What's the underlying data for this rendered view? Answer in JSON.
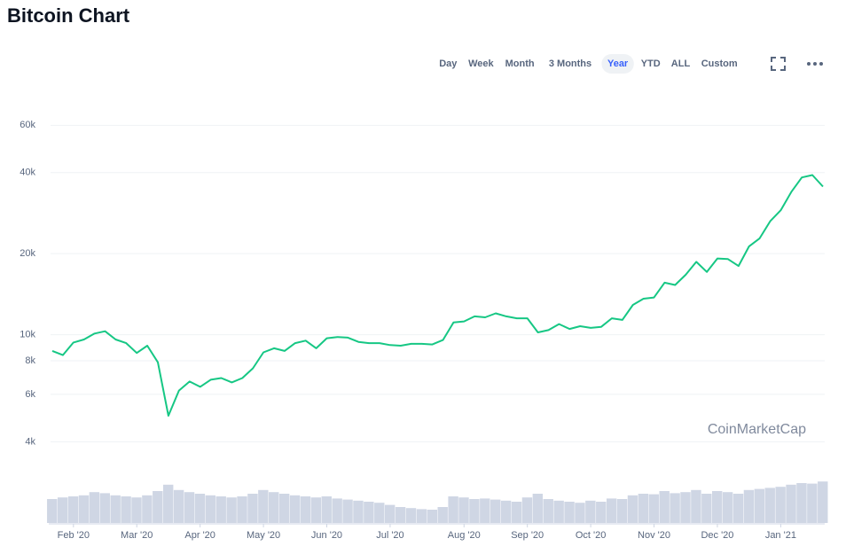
{
  "chart_data": {
    "type": "line",
    "title": "Bitcoin Chart",
    "toolbar": {
      "buttons": [
        "Day",
        "Week",
        "Month",
        "3 Months",
        "Year",
        "YTD",
        "ALL",
        "Custom"
      ],
      "active": 4
    },
    "watermark": "CoinMarketCap",
    "log_scale": true,
    "grid": true,
    "categories": [
      null,
      null,
      "Feb '20",
      null,
      null,
      null,
      null,
      null,
      "Mar '20",
      null,
      null,
      null,
      null,
      null,
      "Apr '20",
      null,
      null,
      null,
      null,
      null,
      "May '20",
      null,
      null,
      null,
      null,
      null,
      "Jun '20",
      null,
      null,
      null,
      null,
      null,
      "Jul '20",
      null,
      null,
      null,
      null,
      null,
      null,
      "Aug '20",
      null,
      null,
      null,
      null,
      null,
      "Sep '20",
      null,
      null,
      null,
      null,
      null,
      "Oct '20",
      null,
      null,
      null,
      null,
      null,
      "Nov '20",
      null,
      null,
      null,
      null,
      null,
      "Dec '20",
      null,
      null,
      null,
      null,
      null,
      "Jan '21",
      null,
      null,
      null,
      null
    ],
    "series": [
      {
        "color": "#16c784",
        "values": [
          8700,
          8400,
          9350,
          9600,
          10100,
          10300,
          9600,
          9300,
          8550,
          9100,
          7900,
          5000,
          6200,
          6700,
          6400,
          6800,
          6900,
          6650,
          6900,
          7500,
          8600,
          8900,
          8700,
          9300,
          9500,
          8900,
          9700,
          9800,
          9750,
          9400,
          9300,
          9300,
          9150,
          9100,
          9250,
          9250,
          9200,
          9550,
          11100,
          11200,
          11700,
          11600,
          12000,
          11700,
          11500,
          11500,
          10200,
          10400,
          10950,
          10500,
          10750,
          10600,
          10700,
          11500,
          11350,
          12900,
          13600,
          13750,
          15600,
          15300,
          16700,
          18650,
          17100,
          19200,
          19100,
          18000,
          21300,
          22800,
          26400,
          29000,
          33900,
          38400,
          39200,
          35500
        ]
      },
      {
        "type": "bar",
        "axis": "y2",
        "color": "#cfd6e4",
        "values": [
          45,
          48,
          50,
          52,
          58,
          56,
          52,
          50,
          48,
          52,
          60,
          72,
          62,
          58,
          55,
          52,
          50,
          48,
          50,
          55,
          62,
          58,
          55,
          52,
          50,
          48,
          50,
          46,
          44,
          42,
          40,
          38,
          34,
          30,
          28,
          26,
          25,
          30,
          50,
          48,
          45,
          46,
          44,
          42,
          40,
          48,
          55,
          45,
          42,
          40,
          38,
          42,
          40,
          46,
          45,
          52,
          55,
          54,
          60,
          56,
          58,
          62,
          55,
          60,
          58,
          55,
          62,
          64,
          66,
          68,
          72,
          75,
          74,
          78
        ]
      }
    ],
    "ylim": [
      3500,
      70000
    ],
    "yticks": [
      {
        "value": 4000,
        "label": "4k"
      },
      {
        "value": 6000,
        "label": "6k"
      },
      {
        "value": 8000,
        "label": "8k"
      },
      {
        "value": 10000,
        "label": "10k"
      },
      {
        "value": 20000,
        "label": "20k"
      },
      {
        "value": 40000,
        "label": "40k"
      },
      {
        "value": 60000,
        "label": "60k"
      }
    ],
    "y2lim": [
      0,
      100
    ]
  }
}
